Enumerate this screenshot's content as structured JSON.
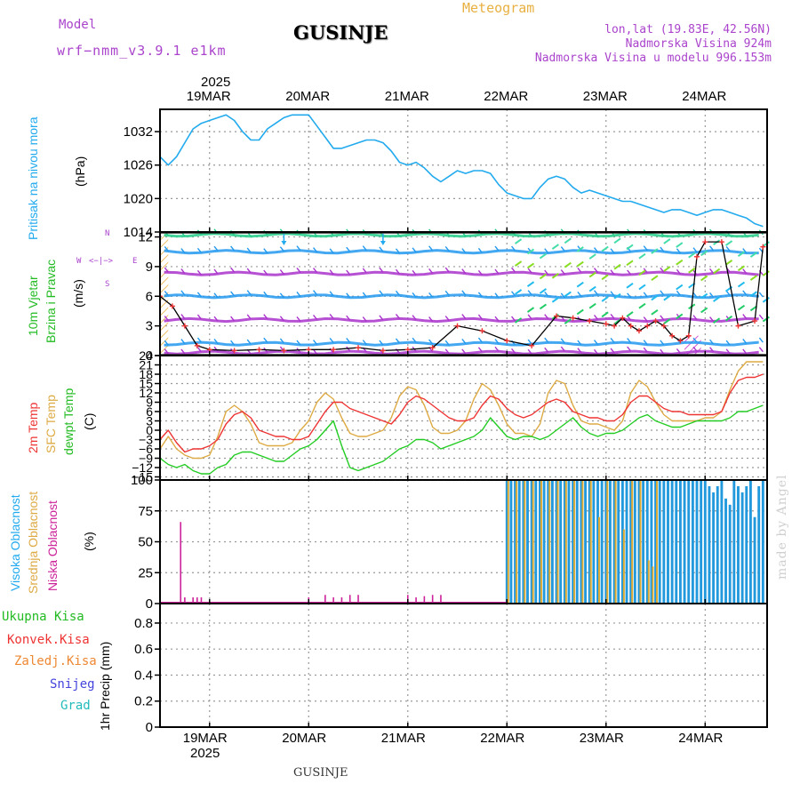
{
  "header": {
    "model_label": "Model",
    "model_name": "wrf−nmm_v3.9.1  e1km",
    "title": "GUSINJE",
    "meteogram_label": "Meteogram",
    "lonlat": "lon,lat (19.83E, 42.56N)",
    "elevation": "Nadmorska Visina 924m",
    "model_elevation": "Nadmorska Visina u modelu 996.153m"
  },
  "axis_dates": {
    "year": "2025",
    "days": [
      "19MAR",
      "20MAR",
      "21MAR",
      "22MAR",
      "23MAR",
      "24MAR"
    ],
    "day_positions_hours": [
      12,
      36,
      60,
      84,
      108,
      132
    ],
    "range_hours": [
      0,
      147
    ]
  },
  "footer": {
    "title": "GUSINJE",
    "credit": "made by Angel"
  },
  "panels": {
    "pressure": {
      "label": "Pritisak na nivou mora",
      "unit": "(hPa)",
      "ticks": [
        "1032",
        "1026",
        "1020",
        "1014"
      ]
    },
    "wind": {
      "label1": "10m Vjetar",
      "label2": "Brzina i Pravac",
      "unit": "(m/s)",
      "ticks": [
        "12",
        "9",
        "6",
        "3",
        "0"
      ],
      "compass": {
        "n": "N",
        "s": "S",
        "w": "W",
        "e": "E"
      }
    },
    "temp": {
      "label1": "2m Temp",
      "label2": "SFC Temp",
      "label3": "dewpt Temp",
      "unit": "(C)",
      "ticks": [
        "24",
        "21",
        "18",
        "15",
        "12",
        "9",
        "6",
        "3",
        "0",
        "−3",
        "−6",
        "−9",
        "−12",
        "−15"
      ]
    },
    "cloud": {
      "label1": "Visoka Oblacnost",
      "label2": "Srednja Oblacnost",
      "label3": "Niska Oblacnost",
      "unit": "(%)",
      "ticks": [
        "100",
        "75",
        "50",
        "25",
        "0"
      ]
    },
    "precip": {
      "legend": [
        "Ukupna Kisa",
        "Konvek.Kisa",
        "Zaledj.Kisa",
        "Snijeg",
        "Grad"
      ],
      "unit": "1hr Precip (mm)",
      "ticks": [
        "0.8",
        "0.6",
        "0.4",
        "0.2",
        "0"
      ]
    }
  },
  "colors": {
    "pressure": "#22aaee",
    "temp2m": "#ee3333",
    "sfc": "#ddaa44",
    "dewpt": "#22cc22",
    "high_cloud": "#2299dd",
    "mid_cloud": "#ddaa33",
    "low_cloud": "#cc2299",
    "purple": "#aa33cc",
    "gold": "#e8b040"
  },
  "chart_data": [
    {
      "type": "line",
      "title": "Pritisak na nivou mora",
      "ylabel": "(hPa)",
      "ylim": [
        1014,
        1036
      ],
      "series": [
        {
          "name": "Pritisak na nivou mora",
          "x": [
            0,
            2,
            4,
            6,
            8,
            10,
            12,
            14,
            16,
            18,
            20,
            22,
            24,
            26,
            28,
            30,
            32,
            34,
            36,
            38,
            40,
            42,
            44,
            46,
            48,
            50,
            52,
            54,
            56,
            58,
            60,
            62,
            64,
            66,
            68,
            70,
            72,
            74,
            76,
            78,
            80,
            82,
            84,
            86,
            88,
            90,
            92,
            94,
            96,
            98,
            100,
            102,
            104,
            106,
            108,
            110,
            112,
            114,
            116,
            118,
            120,
            122,
            124,
            126,
            128,
            130,
            132,
            134,
            136,
            138,
            140,
            142,
            144,
            146
          ],
          "values": [
            1027.5,
            1026.0,
            1027.5,
            1030.0,
            1032.5,
            1033.5,
            1034.0,
            1034.5,
            1035.0,
            1034.0,
            1032.0,
            1030.5,
            1030.5,
            1032.5,
            1033.5,
            1034.5,
            1035.0,
            1035.0,
            1035.0,
            1033.0,
            1031.0,
            1029.0,
            1029.0,
            1029.5,
            1030.0,
            1030.5,
            1030.5,
            1030.0,
            1028.5,
            1026.5,
            1026.0,
            1026.5,
            1025.5,
            1024.0,
            1023.0,
            1024.0,
            1025.0,
            1024.5,
            1025.0,
            1025.0,
            1024.5,
            1022.5,
            1021.0,
            1020.5,
            1020.0,
            1020.0,
            1022.0,
            1023.5,
            1024.0,
            1023.5,
            1022.0,
            1021.0,
            1021.5,
            1021.0,
            1020.5,
            1020.0,
            1019.5,
            1019.5,
            1019.0,
            1018.5,
            1018.0,
            1017.5,
            1018.0,
            1018.0,
            1017.5,
            1017.0,
            1017.5,
            1018.0,
            1018.0,
            1017.5,
            1017.0,
            1016.5,
            1015.5,
            1015.0
          ]
        }
      ]
    },
    {
      "type": "line",
      "title": "10m Vjetar Brzina i Pravac",
      "ylabel": "(m/s)",
      "ylim": [
        0,
        12.5
      ],
      "series": [
        {
          "name": "Brzina",
          "x": [
            0,
            3,
            6,
            9,
            12,
            18,
            24,
            30,
            36,
            42,
            48,
            54,
            60,
            66,
            72,
            78,
            84,
            90,
            96,
            100,
            104,
            108,
            110,
            112,
            114,
            116,
            118,
            120,
            122,
            124,
            126,
            128,
            130,
            132,
            136,
            140,
            144,
            146
          ],
          "values": [
            6.0,
            5.0,
            3.0,
            1.0,
            0.6,
            0.5,
            0.6,
            0.5,
            0.6,
            0.6,
            0.8,
            0.5,
            0.6,
            0.8,
            3.0,
            2.5,
            1.5,
            1.0,
            4.0,
            3.8,
            3.5,
            3.2,
            3.0,
            3.8,
            3.0,
            2.5,
            3.0,
            3.5,
            3.0,
            2.0,
            1.5,
            2.0,
            10.0,
            11.5,
            11.5,
            3.0,
            3.5,
            11.0
          ]
        }
      ]
    },
    {
      "type": "line",
      "title": "2m Temp, SFC Temp, dewpt Temp",
      "ylabel": "(C)",
      "ylim": [
        -16,
        24
      ],
      "series": [
        {
          "name": "2m Temp",
          "x": [
            0,
            2,
            4,
            6,
            8,
            10,
            12,
            14,
            16,
            18,
            20,
            22,
            24,
            26,
            28,
            30,
            32,
            34,
            36,
            38,
            40,
            42,
            44,
            46,
            48,
            50,
            52,
            54,
            56,
            58,
            60,
            62,
            64,
            66,
            68,
            70,
            72,
            74,
            76,
            78,
            80,
            82,
            84,
            86,
            88,
            90,
            92,
            94,
            96,
            98,
            100,
            102,
            104,
            106,
            108,
            110,
            112,
            114,
            116,
            118,
            120,
            122,
            124,
            126,
            128,
            130,
            132,
            134,
            136,
            138,
            140,
            142,
            144,
            146
          ],
          "values": [
            -3,
            0,
            -4,
            -7,
            -6,
            -6,
            -5,
            -3,
            2,
            5,
            6,
            4,
            0,
            -1,
            -2,
            -2,
            -3,
            -3,
            -2,
            2,
            6,
            9,
            9,
            7,
            6,
            5,
            4,
            3,
            2,
            5,
            9,
            11,
            10,
            8,
            6,
            4,
            3,
            3,
            4,
            8,
            11,
            10,
            7,
            5,
            4,
            5,
            7,
            9,
            10,
            9,
            6,
            5,
            4,
            4,
            3,
            3,
            5,
            9,
            11,
            11,
            9,
            7,
            6,
            6,
            5,
            5,
            5,
            5,
            6,
            12,
            16,
            17,
            17,
            18
          ]
        },
        {
          "name": "SFC Temp",
          "x": [
            0,
            2,
            4,
            6,
            8,
            10,
            12,
            14,
            16,
            18,
            20,
            22,
            24,
            26,
            28,
            30,
            32,
            34,
            36,
            38,
            40,
            42,
            44,
            46,
            48,
            50,
            52,
            54,
            56,
            58,
            60,
            62,
            64,
            66,
            68,
            70,
            72,
            74,
            76,
            78,
            80,
            82,
            84,
            86,
            88,
            90,
            92,
            94,
            96,
            98,
            100,
            102,
            104,
            106,
            108,
            110,
            112,
            114,
            116,
            118,
            120,
            122,
            124,
            126,
            128,
            130,
            132,
            134,
            136,
            138,
            140,
            142,
            144,
            146
          ],
          "values": [
            -6,
            -2,
            -6,
            -8,
            -9,
            -9,
            -8,
            -2,
            6,
            8,
            6,
            2,
            -4,
            -5,
            -5,
            -5,
            -4,
            0,
            3,
            9,
            12,
            10,
            4,
            -1,
            -2,
            -2,
            -1,
            0,
            4,
            11,
            14,
            13,
            8,
            1,
            -1,
            -1,
            0,
            3,
            10,
            15,
            13,
            8,
            2,
            -1,
            -1,
            -2,
            2,
            12,
            16,
            15,
            8,
            3,
            2,
            2,
            1,
            0,
            3,
            12,
            16,
            14,
            9,
            5,
            3,
            3,
            3,
            3,
            4,
            4,
            6,
            13,
            19,
            22,
            22,
            22
          ]
        },
        {
          "name": "dewpt Temp",
          "x": [
            0,
            2,
            4,
            6,
            8,
            10,
            12,
            14,
            16,
            18,
            20,
            22,
            24,
            26,
            28,
            30,
            32,
            34,
            36,
            38,
            40,
            42,
            44,
            46,
            48,
            50,
            52,
            54,
            56,
            58,
            60,
            62,
            64,
            66,
            68,
            70,
            72,
            74,
            76,
            78,
            80,
            82,
            84,
            86,
            88,
            90,
            92,
            94,
            96,
            98,
            100,
            102,
            104,
            106,
            108,
            110,
            112,
            114,
            116,
            118,
            120,
            122,
            124,
            126,
            128,
            130,
            132,
            134,
            136,
            138,
            140,
            142,
            144,
            146
          ],
          "values": [
            -9,
            -11,
            -12,
            -11,
            -13,
            -14,
            -14,
            -12,
            -11,
            -8,
            -7,
            -7,
            -8,
            -9,
            -10,
            -10,
            -8,
            -6,
            -5,
            -3,
            0,
            3,
            -5,
            -12,
            -13,
            -12,
            -11,
            -10,
            -8,
            -6,
            -5,
            -3,
            -3,
            -4,
            -6,
            -5,
            -4,
            -3,
            -2,
            0,
            4,
            1,
            -2,
            -3,
            -2,
            -2,
            -3,
            -2,
            0,
            2,
            4,
            1,
            -1,
            -2,
            -1,
            -1,
            0,
            2,
            4,
            5,
            3,
            2,
            1,
            1,
            2,
            3,
            3,
            3,
            3,
            4,
            6,
            6,
            7,
            8
          ]
        }
      ]
    },
    {
      "type": "bar",
      "title": "Oblacnost",
      "ylabel": "(%)",
      "ylim": [
        0,
        100
      ],
      "series": [
        {
          "name": "Visoka Oblacnost",
          "x": [
            84,
            85,
            86,
            87,
            88,
            89,
            90,
            91,
            92,
            93,
            94,
            95,
            96,
            97,
            98,
            99,
            100,
            101,
            102,
            103,
            104,
            105,
            106,
            107,
            108,
            109,
            110,
            111,
            112,
            113,
            114,
            115,
            116,
            117,
            118,
            119,
            120,
            121,
            122,
            123,
            124,
            125,
            126,
            127,
            128,
            129,
            130,
            131,
            132,
            133,
            134,
            135,
            136,
            137,
            138,
            139,
            140,
            141,
            142,
            143,
            144,
            145,
            146
          ],
          "values": [
            100,
            100,
            100,
            100,
            100,
            100,
            100,
            100,
            100,
            100,
            100,
            100,
            100,
            100,
            100,
            100,
            100,
            100,
            100,
            100,
            100,
            100,
            100,
            100,
            100,
            100,
            100,
            100,
            100,
            100,
            100,
            100,
            100,
            100,
            100,
            100,
            100,
            100,
            100,
            100,
            100,
            100,
            100,
            100,
            100,
            100,
            100,
            100,
            100,
            95,
            90,
            95,
            100,
            85,
            80,
            100,
            95,
            90,
            95,
            100,
            70,
            95,
            100
          ]
        },
        {
          "name": "Srednja Oblacnost",
          "x": [
            84,
            86,
            88,
            90,
            92,
            94,
            96,
            98,
            100,
            102,
            104,
            106,
            108,
            110,
            112,
            114,
            116,
            118,
            119,
            120
          ],
          "values": [
            100,
            100,
            100,
            100,
            100,
            100,
            100,
            100,
            100,
            100,
            100,
            70,
            100,
            100,
            60,
            100,
            100,
            35,
            30,
            100
          ]
        },
        {
          "name": "Niska Oblacnost",
          "x": [
            0,
            5,
            6,
            8,
            9,
            10,
            36,
            40,
            42,
            44,
            46,
            48,
            60,
            62,
            64,
            66,
            68
          ],
          "values": [
            2,
            66,
            5,
            5,
            5,
            5,
            5,
            7,
            5,
            5,
            7,
            7,
            7,
            5,
            6,
            7,
            7
          ]
        }
      ]
    },
    {
      "type": "line",
      "title": "1hr Precip",
      "ylabel": "1hr Precip (mm)",
      "ylim": [
        0,
        0.95
      ],
      "series": [
        {
          "name": "Ukupna Kisa",
          "x": [
            0,
            146
          ],
          "values": [
            0,
            0
          ]
        }
      ]
    }
  ]
}
